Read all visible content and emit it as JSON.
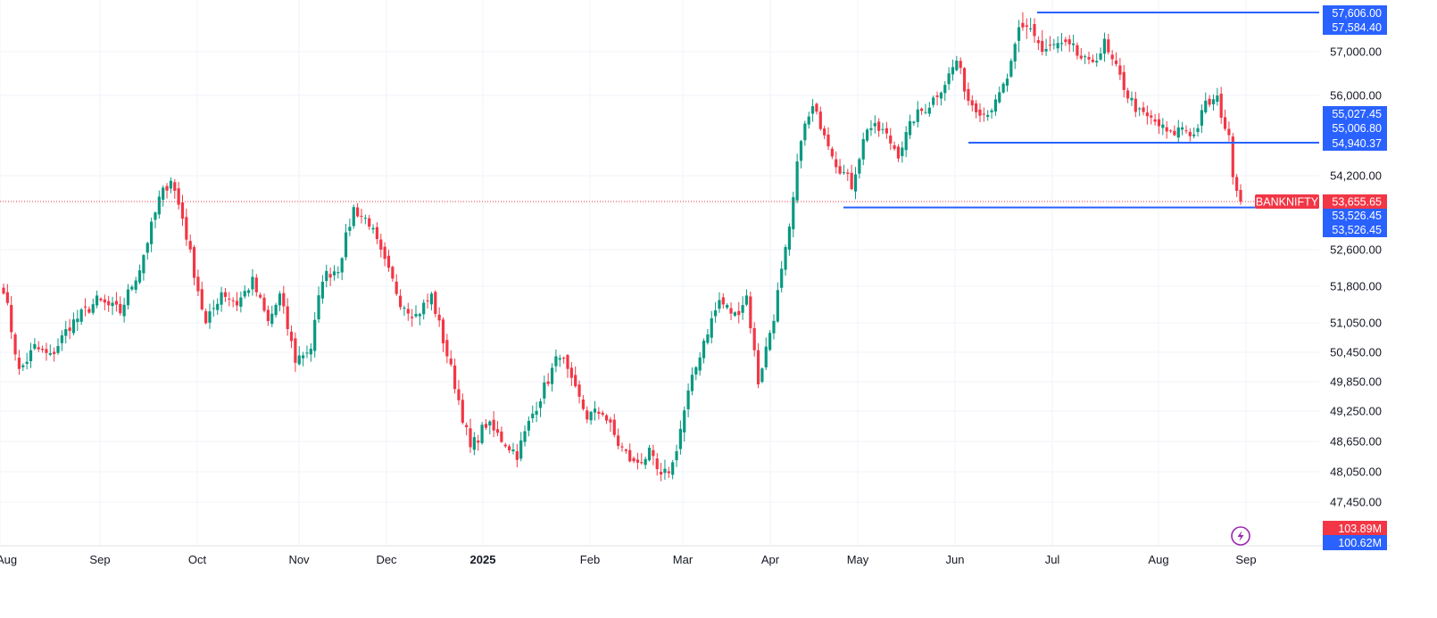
{
  "chart_data": {
    "type": "candlestick",
    "symbol": "BANKNIFTY",
    "last_price": 53655.65,
    "last_price_label": "53,655.65",
    "colors": {
      "up": "#089981",
      "down": "#f23645",
      "line": "#2962ff",
      "grid": "#f0f3fa"
    },
    "y_ticks": [
      "47,450.00",
      "48,050.00",
      "48,650.00",
      "49,250.00",
      "49,850.00",
      "50,450.00",
      "51,050.00",
      "51,800.00",
      "52,600.00",
      "54,200.00",
      "56,000.00",
      "57,000.00"
    ],
    "x_ticks": [
      {
        "label": "Aug",
        "bold": false
      },
      {
        "label": "Sep",
        "bold": false
      },
      {
        "label": "Oct",
        "bold": false
      },
      {
        "label": "Nov",
        "bold": false
      },
      {
        "label": "Dec",
        "bold": false
      },
      {
        "label": "2025",
        "bold": true
      },
      {
        "label": "Feb",
        "bold": false
      },
      {
        "label": "Mar",
        "bold": false
      },
      {
        "label": "Apr",
        "bold": false
      },
      {
        "label": "May",
        "bold": false
      },
      {
        "label": "Jun",
        "bold": false
      },
      {
        "label": "Jul",
        "bold": false
      },
      {
        "label": "Aug",
        "bold": false
      },
      {
        "label": "Sep",
        "bold": false
      }
    ],
    "horizontal_lines": [
      {
        "name": "resistance-line",
        "price": 57606.0
      },
      {
        "name": "support-line-mid",
        "price": 54940.37
      },
      {
        "name": "support-line-low",
        "price": 53526.45
      }
    ],
    "price_labels": [
      {
        "text": "57,606.00",
        "kind": "line"
      },
      {
        "text": "57,584.40",
        "kind": "line"
      },
      {
        "text": "55,027.45",
        "kind": "line"
      },
      {
        "text": "55,006.80",
        "kind": "line"
      },
      {
        "text": "54,940.37",
        "kind": "line"
      },
      {
        "text": "53,526.45",
        "kind": "line"
      },
      {
        "text": "53,526.45",
        "kind": "line"
      }
    ],
    "volume_labels": [
      {
        "text": "103.89M",
        "kind": "vol-down"
      },
      {
        "text": "100.62M",
        "kind": "vol-line"
      }
    ],
    "series_anchors": [
      {
        "i": 0,
        "p": 51780
      },
      {
        "i": 4,
        "p": 50050
      },
      {
        "i": 8,
        "p": 50550
      },
      {
        "i": 12,
        "p": 50350
      },
      {
        "i": 17,
        "p": 51000
      },
      {
        "i": 24,
        "p": 51500
      },
      {
        "i": 30,
        "p": 51280
      },
      {
        "i": 35,
        "p": 52200
      },
      {
        "i": 40,
        "p": 53700
      },
      {
        "i": 43,
        "p": 54150
      },
      {
        "i": 46,
        "p": 53300
      },
      {
        "i": 49,
        "p": 52100
      },
      {
        "i": 52,
        "p": 51000
      },
      {
        "i": 56,
        "p": 51700
      },
      {
        "i": 60,
        "p": 51450
      },
      {
        "i": 64,
        "p": 51900
      },
      {
        "i": 68,
        "p": 51050
      },
      {
        "i": 71,
        "p": 51600
      },
      {
        "i": 75,
        "p": 50300
      },
      {
        "i": 79,
        "p": 50550
      },
      {
        "i": 82,
        "p": 52000
      },
      {
        "i": 86,
        "p": 52200
      },
      {
        "i": 90,
        "p": 53500
      },
      {
        "i": 94,
        "p": 53200
      },
      {
        "i": 97,
        "p": 52500
      },
      {
        "i": 102,
        "p": 51500
      },
      {
        "i": 106,
        "p": 51200
      },
      {
        "i": 110,
        "p": 51600
      },
      {
        "i": 113,
        "p": 50700
      },
      {
        "i": 116,
        "p": 49800
      },
      {
        "i": 120,
        "p": 48500
      },
      {
        "i": 124,
        "p": 49000
      },
      {
        "i": 128,
        "p": 48700
      },
      {
        "i": 132,
        "p": 48400
      },
      {
        "i": 136,
        "p": 49200
      },
      {
        "i": 140,
        "p": 49900
      },
      {
        "i": 143,
        "p": 50450
      },
      {
        "i": 146,
        "p": 49800
      },
      {
        "i": 150,
        "p": 49150
      },
      {
        "i": 154,
        "p": 49250
      },
      {
        "i": 158,
        "p": 48600
      },
      {
        "i": 162,
        "p": 48200
      },
      {
        "i": 166,
        "p": 48400
      },
      {
        "i": 169,
        "p": 47900
      },
      {
        "i": 172,
        "p": 48200
      },
      {
        "i": 176,
        "p": 49600
      },
      {
        "i": 180,
        "p": 50700
      },
      {
        "i": 184,
        "p": 51500
      },
      {
        "i": 188,
        "p": 51200
      },
      {
        "i": 191,
        "p": 51600
      },
      {
        "i": 194,
        "p": 49850
      },
      {
        "i": 198,
        "p": 51200
      },
      {
        "i": 202,
        "p": 53000
      },
      {
        "i": 205,
        "p": 55100
      },
      {
        "i": 208,
        "p": 55700
      },
      {
        "i": 211,
        "p": 55200
      },
      {
        "i": 214,
        "p": 54500
      },
      {
        "i": 218,
        "p": 54000
      },
      {
        "i": 222,
        "p": 55300
      },
      {
        "i": 226,
        "p": 55200
      },
      {
        "i": 230,
        "p": 54700
      },
      {
        "i": 234,
        "p": 55500
      },
      {
        "i": 238,
        "p": 55800
      },
      {
        "i": 242,
        "p": 56300
      },
      {
        "i": 245,
        "p": 56800
      },
      {
        "i": 248,
        "p": 55900
      },
      {
        "i": 252,
        "p": 55600
      },
      {
        "i": 255,
        "p": 55800
      },
      {
        "i": 258,
        "p": 56400
      },
      {
        "i": 261,
        "p": 57300
      },
      {
        "i": 264,
        "p": 57400
      },
      {
        "i": 267,
        "p": 57000
      },
      {
        "i": 271,
        "p": 57100
      },
      {
        "i": 275,
        "p": 57000
      },
      {
        "i": 279,
        "p": 56700
      },
      {
        "i": 283,
        "p": 57100
      },
      {
        "i": 286,
        "p": 56600
      },
      {
        "i": 289,
        "p": 56000
      },
      {
        "i": 292,
        "p": 55600
      },
      {
        "i": 296,
        "p": 55400
      },
      {
        "i": 300,
        "p": 55100
      },
      {
        "i": 303,
        "p": 55300
      },
      {
        "i": 306,
        "p": 55100
      },
      {
        "i": 309,
        "p": 55800
      },
      {
        "i": 312,
        "p": 55900
      },
      {
        "i": 314,
        "p": 55300
      },
      {
        "i": 315,
        "p": 55000
      },
      {
        "i": 316,
        "p": 54300
      },
      {
        "i": 318,
        "p": 53655
      }
    ]
  }
}
